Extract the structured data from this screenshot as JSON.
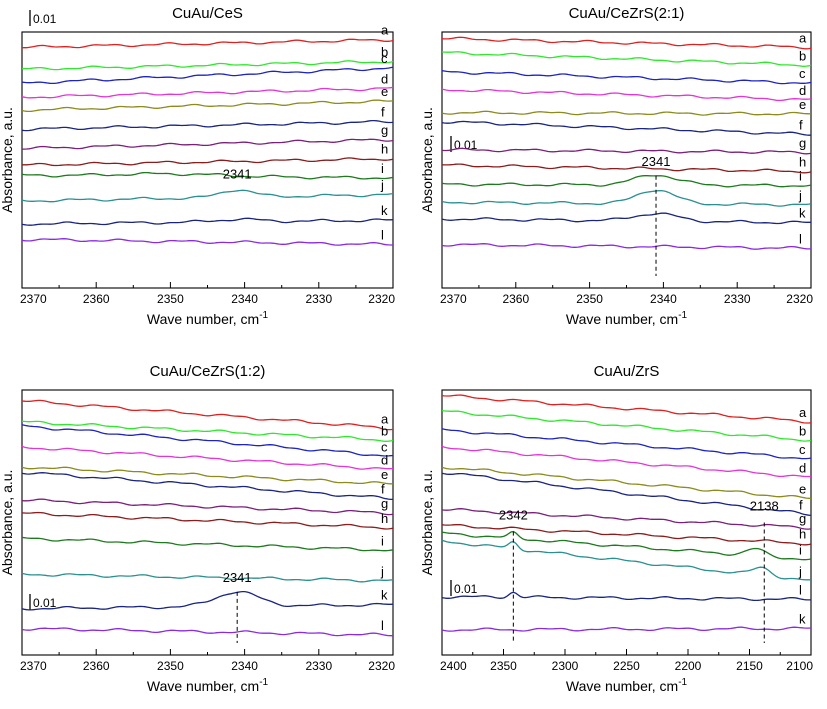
{
  "chart_data": [
    {
      "type": "line",
      "title": "CuAu/CeS",
      "xlabel": "Wave number, cm",
      "xlabel_sup": "-1",
      "ylabel": "Absorbance, a.u.",
      "xlim": [
        2370,
        2320
      ],
      "ticks": [
        "2370",
        "2360",
        "2350",
        "2340",
        "2330",
        "2320"
      ],
      "scale_bar": "0.01",
      "annotations": [
        {
          "text": "2341",
          "x": 2341,
          "dashed": false
        }
      ],
      "series": [
        {
          "name": "a",
          "color": "#e0201e",
          "start": 0.06,
          "end": 0.03,
          "peaks": []
        },
        {
          "name": "b",
          "color": "#2ee82b",
          "start": 0.145,
          "end": 0.115,
          "peaks": []
        },
        {
          "name": "c",
          "color": "#1e24c0",
          "start": 0.2,
          "end": 0.14,
          "peaks": []
        },
        {
          "name": "d",
          "color": "#e534d8",
          "start": 0.255,
          "end": 0.22,
          "peaks": []
        },
        {
          "name": "e",
          "color": "#8b8b1e",
          "start": 0.305,
          "end": 0.27,
          "peaks": []
        },
        {
          "name": "f",
          "color": "#1a2580",
          "start": 0.38,
          "end": 0.35,
          "peaks": []
        },
        {
          "name": "g",
          "color": "#7a1f7a",
          "start": 0.455,
          "end": 0.42,
          "peaks": []
        },
        {
          "name": "h",
          "color": "#8a1c1c",
          "start": 0.52,
          "end": 0.495,
          "peaks": []
        },
        {
          "name": "i",
          "color": "#1e7a1e",
          "start": 0.56,
          "end": 0.57,
          "peaks": [
            {
              "x": 2350,
              "h": 0.01,
              "w": 10
            }
          ]
        },
        {
          "name": "j",
          "color": "#2a9090",
          "start": 0.66,
          "end": 0.635,
          "peaks": [
            {
              "x": 2341,
              "h": 0.03,
              "w": 3
            }
          ]
        },
        {
          "name": "k",
          "color": "#1a2580",
          "start": 0.75,
          "end": 0.735,
          "peaks": [
            {
              "x": 2341,
              "h": 0.01,
              "w": 4
            }
          ]
        },
        {
          "name": "l",
          "color": "#8a2be2",
          "start": 0.81,
          "end": 0.83,
          "peaks": []
        }
      ]
    },
    {
      "type": "line",
      "title": "CuAu/CeZrS(2:1)",
      "xlabel": "Wave number, cm",
      "xlabel_sup": "-1",
      "ylabel": "Absorbance, a.u.",
      "xlim": [
        2370,
        2320
      ],
      "ticks": [
        "2370",
        "2360",
        "2350",
        "2340",
        "2330",
        "2320"
      ],
      "scale_bar": "0.01",
      "annotations": [
        {
          "text": "2341",
          "x": 2341,
          "dashed": true
        }
      ],
      "series": [
        {
          "name": "a",
          "color": "#e0201e",
          "start": 0.025,
          "end": 0.06,
          "peaks": []
        },
        {
          "name": "b",
          "color": "#2ee82b",
          "start": 0.08,
          "end": 0.13,
          "peaks": []
        },
        {
          "name": "c",
          "color": "#1e24c0",
          "start": 0.155,
          "end": 0.2,
          "peaks": []
        },
        {
          "name": "d",
          "color": "#e534d8",
          "start": 0.225,
          "end": 0.265,
          "peaks": []
        },
        {
          "name": "e",
          "color": "#8b8b1e",
          "start": 0.315,
          "end": 0.32,
          "peaks": []
        },
        {
          "name": "f",
          "color": "#1a2580",
          "start": 0.35,
          "end": 0.4,
          "peaks": []
        },
        {
          "name": "g",
          "color": "#7a1f7a",
          "start": 0.46,
          "end": 0.47,
          "peaks": []
        },
        {
          "name": "h",
          "color": "#8a1c1c",
          "start": 0.52,
          "end": 0.545,
          "peaks": []
        },
        {
          "name": "i",
          "color": "#1e7a1e",
          "start": 0.595,
          "end": 0.6,
          "peaks": [
            {
              "x": 2341,
              "h": 0.04,
              "w": 4
            }
          ]
        },
        {
          "name": "j",
          "color": "#2a9090",
          "start": 0.665,
          "end": 0.675,
          "peaks": [
            {
              "x": 2341,
              "h": 0.055,
              "w": 3.5
            }
          ]
        },
        {
          "name": "k",
          "color": "#1a2580",
          "start": 0.73,
          "end": 0.745,
          "peaks": [
            {
              "x": 2341,
              "h": 0.03,
              "w": 4
            }
          ]
        },
        {
          "name": "l",
          "color": "#8a2be2",
          "start": 0.83,
          "end": 0.845,
          "peaks": []
        }
      ]
    },
    {
      "type": "line",
      "title": "CuAu/CeZrS(1:2)",
      "xlabel": "Wave number, cm",
      "xlabel_sup": "-1",
      "ylabel": "Absorbance, a.u.",
      "xlim": [
        2370,
        2320
      ],
      "ticks": [
        "2370",
        "2360",
        "2350",
        "2340",
        "2330",
        "2320"
      ],
      "scale_bar": "0.01",
      "annotations": [
        {
          "text": "2341",
          "x": 2341,
          "dashed": true
        }
      ],
      "series": [
        {
          "name": "a",
          "color": "#e0201e",
          "start": 0.04,
          "end": 0.145,
          "peaks": []
        },
        {
          "name": "b",
          "color": "#2ee82b",
          "start": 0.12,
          "end": 0.19,
          "peaks": []
        },
        {
          "name": "c",
          "color": "#1e24c0",
          "start": 0.135,
          "end": 0.25,
          "peaks": []
        },
        {
          "name": "d",
          "color": "#e534d8",
          "start": 0.215,
          "end": 0.3,
          "peaks": []
        },
        {
          "name": "e",
          "color": "#8b8b1e",
          "start": 0.29,
          "end": 0.355,
          "peaks": []
        },
        {
          "name": "f",
          "color": "#1a2580",
          "start": 0.31,
          "end": 0.41,
          "peaks": []
        },
        {
          "name": "g",
          "color": "#7a1f7a",
          "start": 0.415,
          "end": 0.465,
          "peaks": []
        },
        {
          "name": "h",
          "color": "#8a1c1c",
          "start": 0.465,
          "end": 0.52,
          "peaks": []
        },
        {
          "name": "i",
          "color": "#1e7a1e",
          "start": 0.56,
          "end": 0.605,
          "peaks": []
        },
        {
          "name": "j",
          "color": "#2a9090",
          "start": 0.695,
          "end": 0.72,
          "peaks": []
        },
        {
          "name": "k",
          "color": "#1a2580",
          "start": 0.825,
          "end": 0.81,
          "peaks": [
            {
              "x": 2341,
              "h": 0.055,
              "w": 4
            }
          ]
        },
        {
          "name": "l",
          "color": "#8a2be2",
          "start": 0.9,
          "end": 0.925,
          "peaks": []
        }
      ]
    },
    {
      "type": "line",
      "title": "CuAu/ZrS",
      "xlabel": "Wave number, cm",
      "xlabel_sup": "-1",
      "ylabel": "Absorbance, a.u.",
      "xlim": [
        2400,
        2100
      ],
      "ticks": [
        "2400",
        "2350",
        "2300",
        "2250",
        "2200",
        "2150",
        "2100"
      ],
      "scale_bar": "0.01",
      "annotations": [
        {
          "text": "2342",
          "x": 2342,
          "dashed": true
        },
        {
          "text": "2138",
          "x": 2138,
          "dashed": true
        }
      ],
      "series": [
        {
          "name": "a",
          "color": "#e0201e",
          "start": 0.02,
          "end": 0.12,
          "peaks": []
        },
        {
          "name": "b",
          "color": "#2ee82b",
          "start": 0.08,
          "end": 0.19,
          "peaks": []
        },
        {
          "name": "c",
          "color": "#1e24c0",
          "start": 0.15,
          "end": 0.26,
          "peaks": []
        },
        {
          "name": "d",
          "color": "#e534d8",
          "start": 0.215,
          "end": 0.33,
          "peaks": []
        },
        {
          "name": "e",
          "color": "#8b8b1e",
          "start": 0.29,
          "end": 0.41,
          "peaks": []
        },
        {
          "name": "f",
          "color": "#1a2580",
          "start": 0.31,
          "end": 0.47,
          "peaks": []
        },
        {
          "name": "g",
          "color": "#7a1f7a",
          "start": 0.45,
          "end": 0.52,
          "peaks": []
        },
        {
          "name": "h",
          "color": "#8a1c1c",
          "start": 0.51,
          "end": 0.58,
          "peaks": []
        },
        {
          "name": "i",
          "color": "#1e7a1e",
          "start": 0.54,
          "end": 0.64,
          "peaks": [
            {
              "x": 2342,
              "h": 0.02,
              "w": 5
            },
            {
              "x": 2145,
              "h": 0.025,
              "w": 10
            }
          ]
        },
        {
          "name": "j",
          "color": "#2a9090",
          "start": 0.57,
          "end": 0.72,
          "peaks": [
            {
              "x": 2342,
              "h": 0.025,
              "w": 5
            },
            {
              "x": 2140,
              "h": 0.03,
              "w": 10
            }
          ]
        },
        {
          "name": "l",
          "color": "#1a2580",
          "start": 0.78,
          "end": 0.79,
          "peaks": [
            {
              "x": 2342,
              "h": 0.02,
              "w": 5
            }
          ]
        },
        {
          "name": "k",
          "color": "#8a2be2",
          "start": 0.905,
          "end": 0.9,
          "peaks": []
        }
      ]
    }
  ]
}
